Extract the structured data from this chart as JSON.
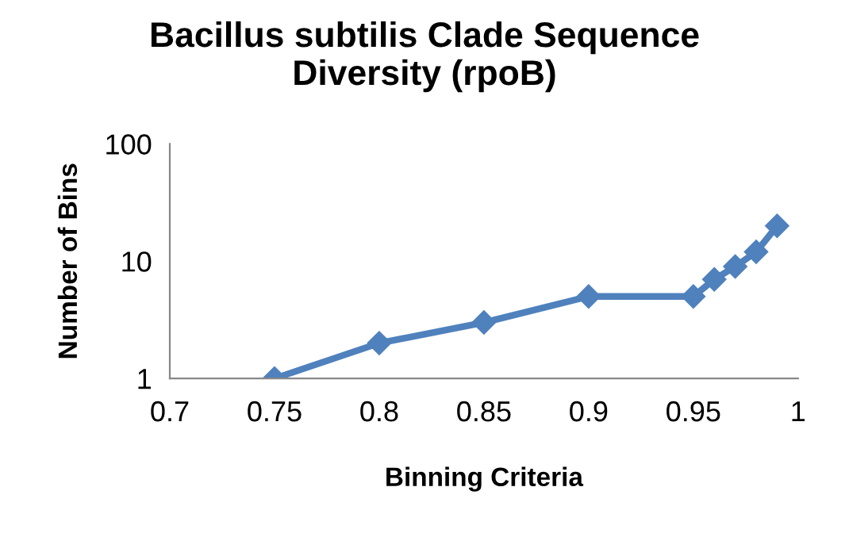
{
  "chart_data": {
    "type": "line",
    "title": "Bacillus subtilis Clade Sequence\nDiversity (rpoB)",
    "xlabel": "Binning Criteria",
    "ylabel": "Number of Bins",
    "x": [
      0.75,
      0.8,
      0.85,
      0.9,
      0.95,
      0.96,
      0.97,
      0.98,
      0.99
    ],
    "series": [
      {
        "color": "#4f81bd",
        "values": [
          1,
          2,
          3,
          5,
          5,
          7,
          9,
          12,
          20
        ]
      }
    ],
    "xlim": [
      0.7,
      1
    ],
    "xticks": [
      0.7,
      0.75,
      0.8,
      0.85,
      0.9,
      0.95,
      1
    ],
    "ylim": [
      1,
      100
    ],
    "yticks": [
      1,
      10,
      100
    ],
    "log": "y",
    "grid": false,
    "marker": "diamond",
    "line_style": "solid"
  }
}
